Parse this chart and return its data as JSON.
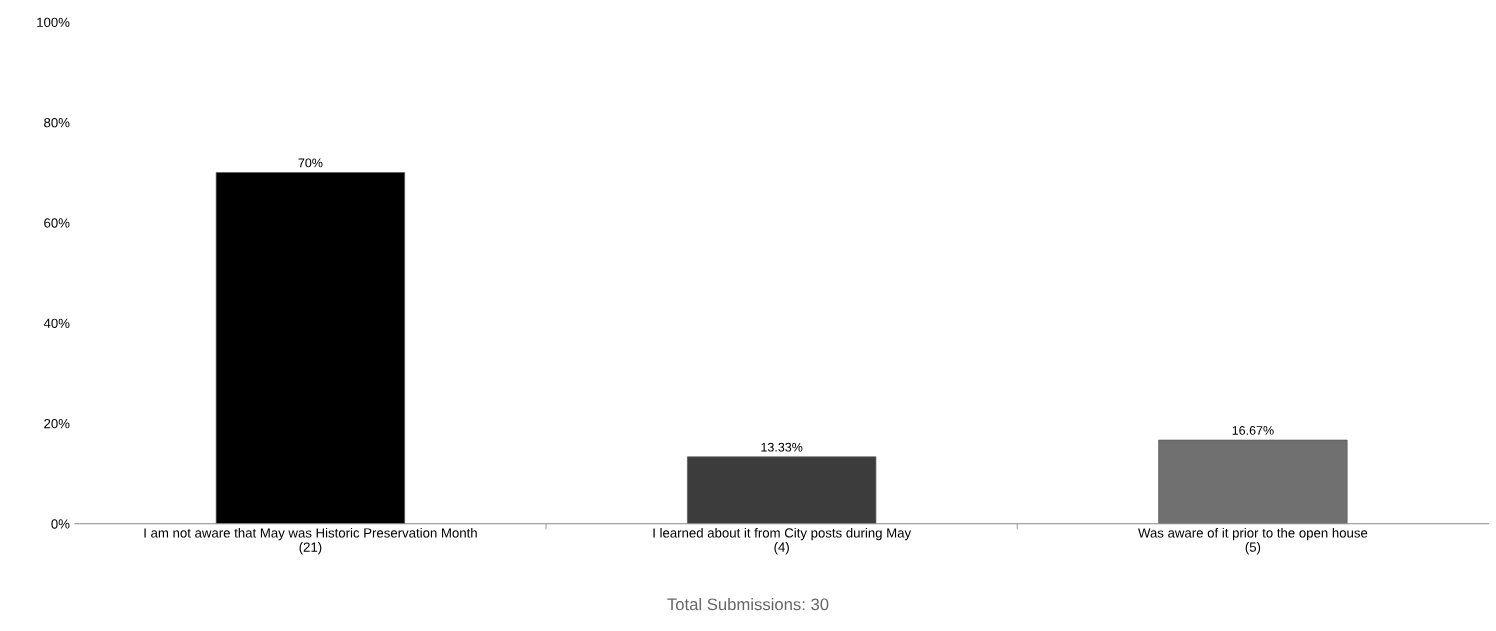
{
  "chart_data": {
    "type": "bar",
    "categories": [
      "I am not aware that May was Historic Preservation Month\n(21)",
      "I learned about it from City posts during May\n(4)",
      "Was aware of it prior to the open house\n(5)"
    ],
    "values": [
      70,
      13.33,
      16.67
    ],
    "colors": [
      "#000000",
      "#3c3c3c",
      "#707070"
    ],
    "value_labels": [
      "70%",
      "13.33%",
      "16.67%"
    ],
    "ylim": [
      0,
      100
    ],
    "yticks": [
      {
        "value": 0,
        "label": "0%"
      },
      {
        "value": 20,
        "label": "20%"
      },
      {
        "value": 40,
        "label": "40%"
      },
      {
        "value": 60,
        "label": "60%"
      },
      {
        "value": 80,
        "label": "80%"
      },
      {
        "value": 100,
        "label": "100%"
      }
    ],
    "grid": false,
    "annotations": [
      "Total Submissions: 30"
    ]
  }
}
